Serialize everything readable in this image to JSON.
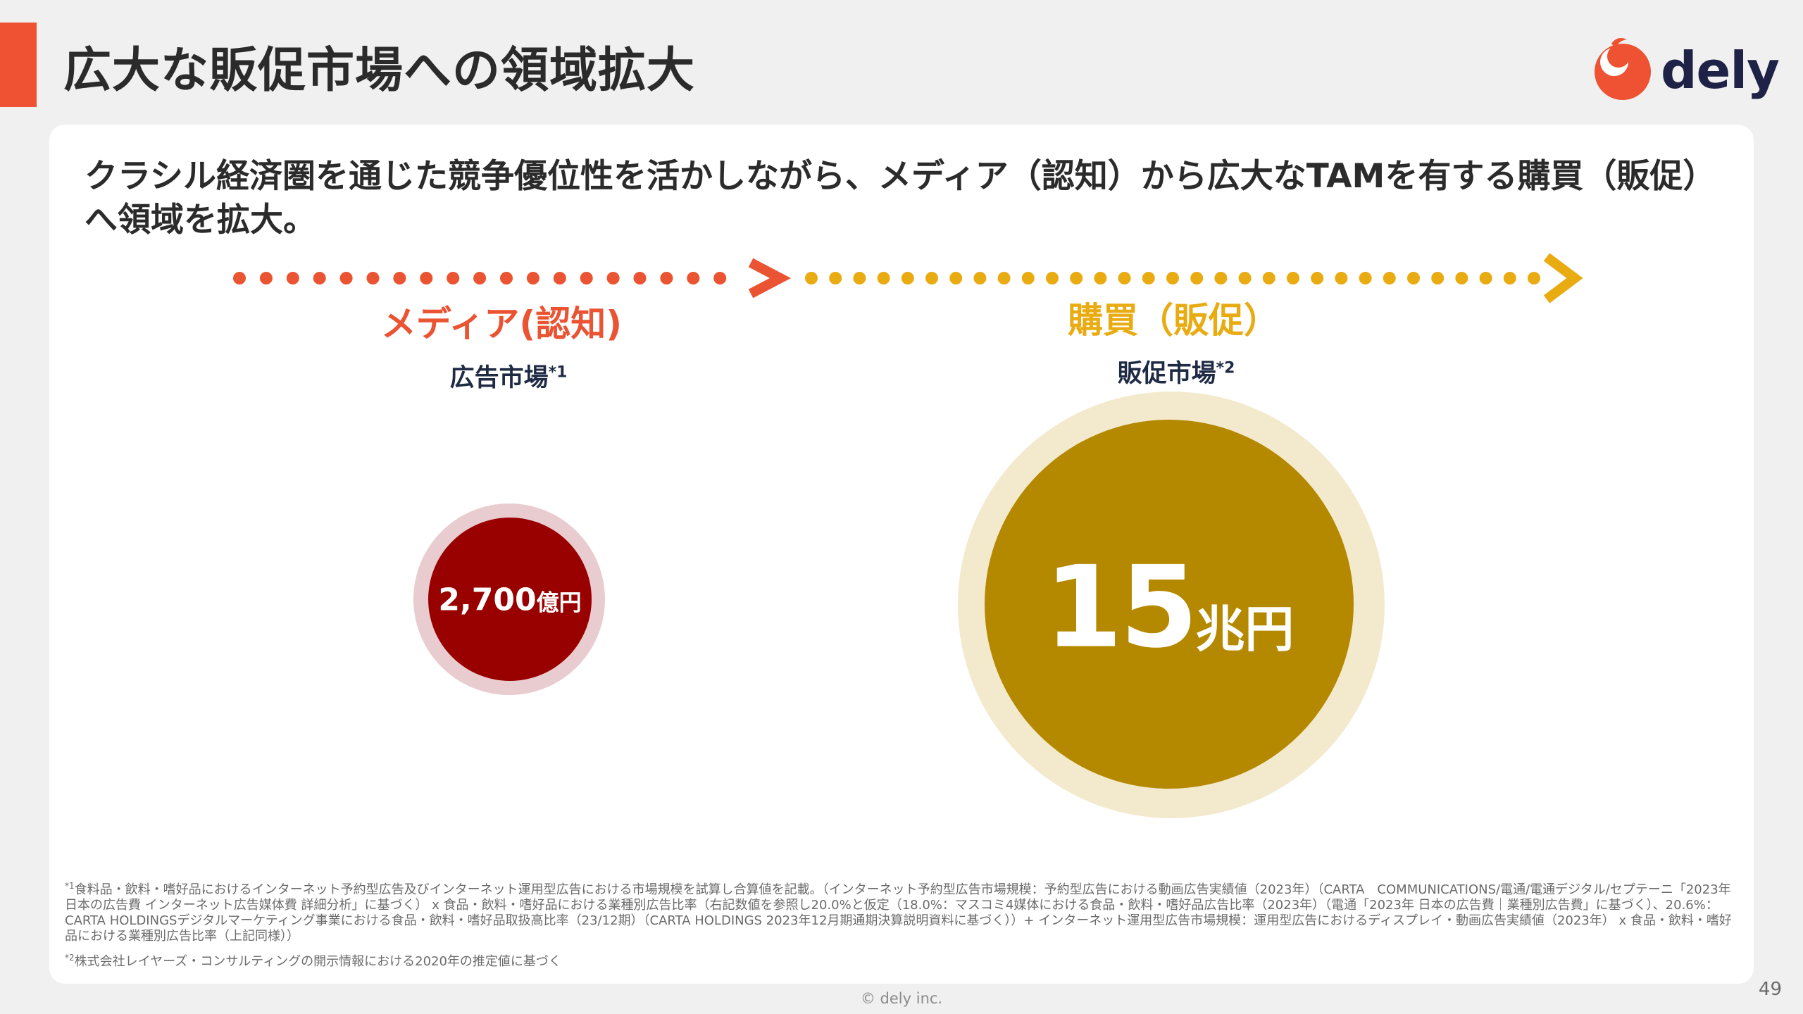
{
  "title": "広大な販促市場への領域拡大",
  "brand": {
    "logo_text": "dely",
    "accent_color": "#ee5233",
    "navy": "#1f2247"
  },
  "lead": "クラシル経済圏を通じた競争優位性を活かしながら、メディア（認知）から広大なTAMを有する購買（販促）へ領域を拡大。",
  "media": {
    "label": "メディア(認知)",
    "market_label": "広告市場",
    "footnote_mark": "*1",
    "value_number": "2,700",
    "value_unit": "億円",
    "color": "#ea5433",
    "circle_color": "#990000"
  },
  "sales_promo": {
    "label": "購買（販促）",
    "market_label": "販促市場",
    "footnote_mark": "*2",
    "value_number": "15",
    "value_unit": "兆円",
    "color": "#e9ab12",
    "circle_color": "#b48900"
  },
  "footnotes": {
    "note1_mark": "*1",
    "note1_text": "食料品・飲料・嗜好品におけるインターネット予約型広告及びインターネット運用型広告における市場規模を試算し合算値を記載。（インターネット予約型広告市場規模：予約型広告における動画広告実績値（2023年）（CARTA　COMMUNICATIONS/電通/電通デジタル/セプテーニ「2023年 日本の広告費 インターネット広告媒体費 詳細分析」に基づく） x 食品・飲料・嗜好品における業種別広告比率（右記数値を参照し20.0%と仮定（18.0%：マスコミ4媒体における食品・飲料・嗜好品広告比率（2023年）（電通「2023年 日本の広告費｜業種別広告費」に基づく）、20.6%：CARTA HOLDINGSデジタルマーケティング事業における食品・飲料・嗜好品取扱高比率（23/12期）（CARTA HOLDINGS 2023年12月期通期決算説明資料に基づく））+ インターネット運用型広告市場規模：運用型広告におけるディスプレイ・動画広告実績値（2023年） x 食品・飲料・嗜好品における業種別広告比率（上記同様））",
    "note2_mark": "*2",
    "note2_text": "株式会社レイヤーズ・コンサルティングの開示情報における2020年の推定値に基づく"
  },
  "copyright": "© dely inc.",
  "page_number": "49"
}
